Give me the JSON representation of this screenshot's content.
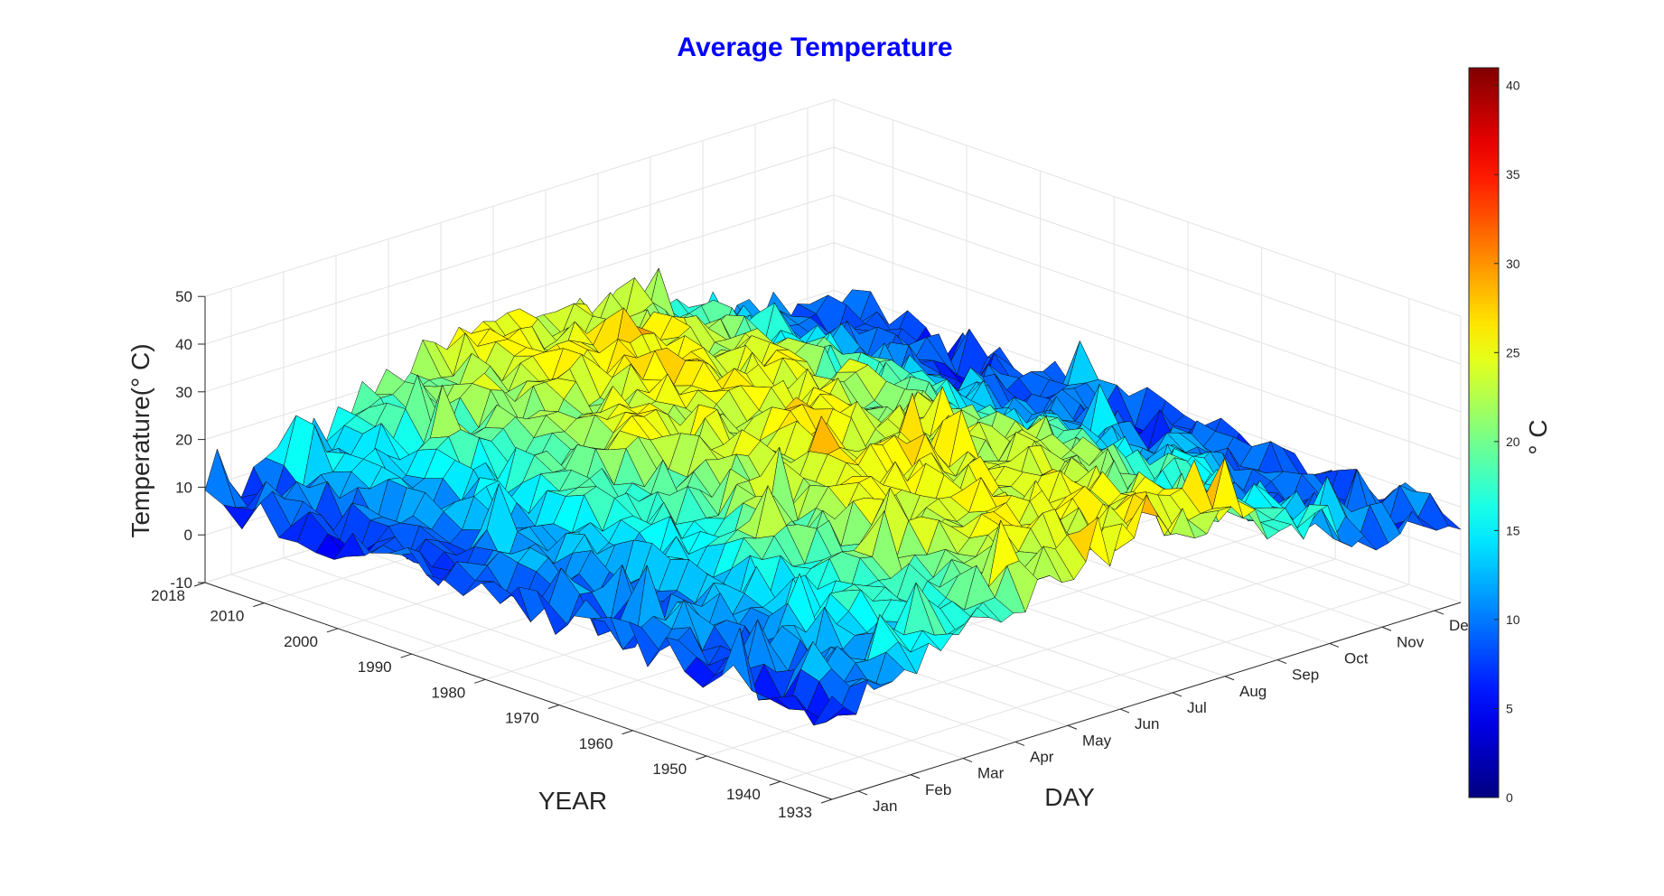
{
  "chart_data": {
    "type": "surface3d",
    "title": "Average Temperature",
    "title_color": "#0000FF",
    "xlabel": "DAY",
    "ylabel": "YEAR",
    "zlabel": "Temperature(° C)",
    "colorbar_label": "° C",
    "colormap": "jet",
    "x_ticklabels": [
      "Jan",
      "Feb",
      "Mar",
      "Apr",
      "May",
      "Jun",
      "Jul",
      "Aug",
      "Sep",
      "Oct",
      "Nov",
      "Dec"
    ],
    "y_ticks": [
      2018,
      2010,
      2000,
      1990,
      1980,
      1970,
      1960,
      1950,
      1940,
      1933
    ],
    "y_range": [
      1933,
      2018
    ],
    "z_ticks": [
      -10,
      0,
      10,
      20,
      30,
      40,
      50
    ],
    "z_range": [
      -10,
      50
    ],
    "colorbar_ticks": [
      0,
      5,
      10,
      15,
      20,
      25,
      30,
      35,
      40
    ],
    "color_range": [
      0,
      41
    ],
    "grid": true
  }
}
